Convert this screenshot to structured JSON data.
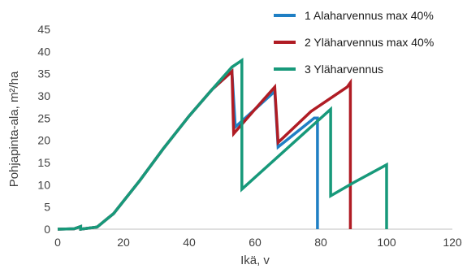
{
  "chart_data": {
    "type": "line",
    "title": "",
    "xlabel": "Ikä, v",
    "ylabel": "Pohjapinta-ala, m²/ha",
    "xlim": [
      0,
      120
    ],
    "ylim": [
      0,
      45
    ],
    "xticks": [
      0,
      20,
      40,
      60,
      80,
      100,
      120
    ],
    "yticks": [
      0,
      5,
      10,
      15,
      20,
      25,
      30,
      35,
      40,
      45
    ],
    "xtick_labels": [
      "0",
      "20",
      "40",
      "60",
      "80",
      "100",
      "120"
    ],
    "ytick_labels": [
      "0",
      "5",
      "10",
      "15",
      "20",
      "25",
      "30",
      "35",
      "40",
      "45"
    ],
    "grid": false,
    "legend_position": "top-right",
    "series": [
      {
        "name": "1 Alaharvennus max 40%",
        "color": "#1f7fc4",
        "x": [
          0,
          5,
          7,
          7,
          12,
          17,
          25,
          32,
          40,
          47,
          53,
          54,
          60,
          66,
          67,
          78,
          79,
          79
        ],
        "y": [
          0,
          0.1,
          0.6,
          0,
          0.5,
          3.5,
          11,
          18,
          25.5,
          31.5,
          35.5,
          23,
          27,
          31,
          18.5,
          25,
          25,
          0
        ]
      },
      {
        "name": "2 Yläharvennus max 40%",
        "color": "#b01c24",
        "x": [
          0,
          5,
          7,
          7,
          12,
          17,
          25,
          32,
          40,
          47,
          53,
          53.5,
          60,
          66,
          67,
          77,
          88,
          89,
          89
        ],
        "y": [
          0,
          0.1,
          0.6,
          0,
          0.5,
          3.5,
          11,
          18,
          25.5,
          31.5,
          35.5,
          21.5,
          27,
          32,
          19.5,
          26.5,
          32,
          33,
          0
        ]
      },
      {
        "name": "3 Yläharvennus",
        "color": "#17997a",
        "x": [
          0,
          5,
          7,
          7,
          12,
          17,
          25,
          32,
          40,
          47,
          53,
          56,
          56,
          68,
          83,
          83,
          90,
          100,
          100
        ],
        "y": [
          0,
          0.1,
          0.6,
          0,
          0.5,
          3.5,
          11,
          18,
          25.5,
          31.5,
          36.5,
          38,
          9,
          17,
          27,
          7.5,
          10.5,
          14.5,
          0
        ]
      }
    ]
  }
}
